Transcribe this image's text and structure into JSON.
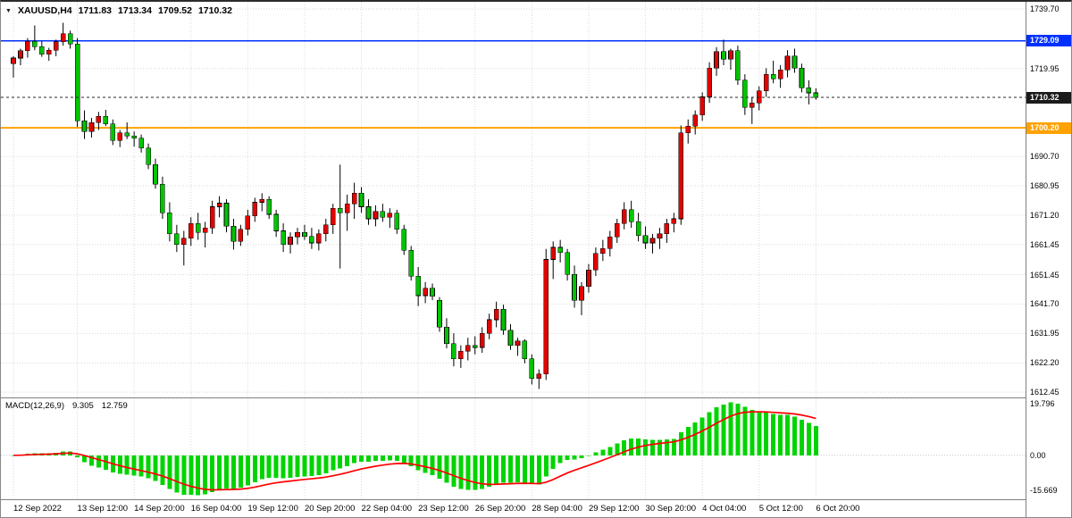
{
  "header": {
    "symbol": "XAUUSD,H4",
    "open": "1711.83",
    "high": "1713.34",
    "low": "1709.52",
    "close": "1710.32",
    "dropdown_icon": "triangle-down"
  },
  "colors": {
    "bull": "#e00400",
    "bear": "#00c400",
    "wick": "#000000",
    "grid": "#d8d8d8",
    "separator": "#808080",
    "hist": "#00d400",
    "signal": "#ff0000",
    "zero_line": "#c8c8c8",
    "text": "#000000",
    "badge_text": "#ffffff"
  },
  "chart_data": {
    "type": "candlestick",
    "symbol": "XAUUSD",
    "timeframe": "H4",
    "legend_position": "top-left",
    "grid": true,
    "main": {
      "ylim": [
        1610.69,
        1742.07
      ],
      "price_ticks": [
        "1739.70",
        "1719.95",
        "1690.70",
        "1680.95",
        "1671.20",
        "1661.45",
        "1651.45",
        "1641.70",
        "1631.95",
        "1622.20",
        "1612.45"
      ],
      "hlines": [
        {
          "price": 1729.09,
          "label": "1729.09",
          "color": "#0030ff",
          "style": "solid",
          "width": 1.5
        },
        {
          "price": 1700.2,
          "label": "1700.20",
          "color": "#ffa200",
          "style": "solid",
          "width": 2
        },
        {
          "price": 1710.32,
          "label": "1710.32",
          "color": "#2a2a2a",
          "style": "dotted",
          "width": 1,
          "badge": "#1b1b1b"
        }
      ],
      "candles": [
        [
          1721.5,
          1724.0,
          1716.9,
          1723.4
        ],
        [
          1723.4,
          1726.5,
          1721.0,
          1725.8
        ],
        [
          1725.8,
          1730.0,
          1723.5,
          1728.9
        ],
        [
          1728.9,
          1734.2,
          1726.0,
          1727.2
        ],
        [
          1727.2,
          1729.0,
          1723.8,
          1724.6
        ],
        [
          1724.6,
          1726.8,
          1722.5,
          1726.0
        ],
        [
          1726.0,
          1729.5,
          1724.0,
          1728.8
        ],
        [
          1728.8,
          1735.1,
          1727.5,
          1731.5
        ],
        [
          1731.5,
          1732.5,
          1726.5,
          1728.0
        ],
        [
          1728.0,
          1730.0,
          1700.5,
          1702.5
        ],
        [
          1702.5,
          1706.0,
          1696.5,
          1699.0
        ],
        [
          1699.0,
          1703.5,
          1697.0,
          1702.0
        ],
        [
          1702.0,
          1705.5,
          1699.5,
          1704.0
        ],
        [
          1704.0,
          1706.2,
          1700.8,
          1701.5
        ],
        [
          1701.5,
          1703.0,
          1694.5,
          1696.0
        ],
        [
          1696.0,
          1699.5,
          1693.8,
          1698.5
        ],
        [
          1698.5,
          1702.0,
          1696.5,
          1697.5
        ],
        [
          1697.5,
          1699.0,
          1694.0,
          1696.8
        ],
        [
          1696.8,
          1698.0,
          1692.0,
          1693.5
        ],
        [
          1693.5,
          1695.0,
          1686.5,
          1688.0
        ],
        [
          1688.0,
          1690.0,
          1680.0,
          1681.5
        ],
        [
          1681.5,
          1684.0,
          1670.0,
          1672.0
        ],
        [
          1672.0,
          1675.5,
          1662.5,
          1665.0
        ],
        [
          1665.0,
          1668.0,
          1659.0,
          1661.5
        ],
        [
          1661.5,
          1666.0,
          1654.5,
          1663.5
        ],
        [
          1663.5,
          1670.5,
          1661.0,
          1668.5
        ],
        [
          1668.5,
          1672.0,
          1663.0,
          1665.5
        ],
        [
          1665.5,
          1669.0,
          1660.5,
          1667.0
        ],
        [
          1667.0,
          1676.0,
          1665.0,
          1674.0
        ],
        [
          1674.0,
          1677.5,
          1670.5,
          1675.2
        ],
        [
          1675.2,
          1676.5,
          1665.5,
          1667.5
        ],
        [
          1667.5,
          1670.0,
          1659.8,
          1662.5
        ],
        [
          1662.5,
          1668.0,
          1661.0,
          1666.5
        ],
        [
          1666.5,
          1673.0,
          1664.5,
          1671.0
        ],
        [
          1671.0,
          1677.0,
          1669.0,
          1675.5
        ],
        [
          1675.5,
          1678.5,
          1672.5,
          1676.4
        ],
        [
          1676.4,
          1677.5,
          1670.0,
          1671.5
        ],
        [
          1671.5,
          1673.0,
          1664.0,
          1666.0
        ],
        [
          1666.0,
          1668.5,
          1659.0,
          1661.5
        ],
        [
          1661.5,
          1665.5,
          1658.5,
          1664.0
        ],
        [
          1664.0,
          1667.0,
          1661.5,
          1665.5
        ],
        [
          1665.5,
          1668.0,
          1663.0,
          1664.2
        ],
        [
          1664.2,
          1667.0,
          1660.0,
          1662.0
        ],
        [
          1662.0,
          1666.5,
          1659.5,
          1665.0
        ],
        [
          1665.0,
          1670.0,
          1662.5,
          1668.0
        ],
        [
          1668.0,
          1675.0,
          1665.0,
          1673.5
        ],
        [
          1673.5,
          1688.0,
          1653.5,
          1672.0
        ],
        [
          1672.0,
          1678.0,
          1666.0,
          1675.0
        ],
        [
          1675.0,
          1682.0,
          1670.0,
          1678.5
        ],
        [
          1678.5,
          1680.5,
          1672.0,
          1674.0
        ],
        [
          1674.0,
          1676.5,
          1668.0,
          1670.0
        ],
        [
          1670.0,
          1674.5,
          1667.5,
          1672.5
        ],
        [
          1672.5,
          1675.0,
          1669.0,
          1670.5
        ],
        [
          1670.5,
          1673.5,
          1667.0,
          1671.8
        ],
        [
          1671.8,
          1673.0,
          1665.0,
          1666.5
        ],
        [
          1666.5,
          1668.0,
          1658.0,
          1659.5
        ],
        [
          1659.5,
          1661.0,
          1649.5,
          1651.0
        ],
        [
          1651.0,
          1654.0,
          1641.0,
          1644.5
        ],
        [
          1644.5,
          1649.0,
          1642.0,
          1647.0
        ],
        [
          1647.0,
          1648.5,
          1643.0,
          1644.3
        ],
        [
          1643.0,
          1644.0,
          1632.5,
          1634.0
        ],
        [
          1634.0,
          1637.0,
          1627.0,
          1628.5
        ],
        [
          1628.5,
          1632.0,
          1621.0,
          1623.5
        ],
        [
          1623.5,
          1628.0,
          1620.5,
          1626.0
        ],
        [
          1626.0,
          1630.5,
          1623.0,
          1628.0
        ],
        [
          1628.0,
          1631.0,
          1625.0,
          1627.3
        ],
        [
          1627.3,
          1634.0,
          1625.5,
          1632.0
        ],
        [
          1632.0,
          1638.5,
          1630.0,
          1636.5
        ],
        [
          1636.5,
          1642.5,
          1634.0,
          1640.0
        ],
        [
          1640.0,
          1641.5,
          1631.5,
          1633.0
        ],
        [
          1633.0,
          1635.0,
          1626.5,
          1628.0
        ],
        [
          1628.0,
          1630.5,
          1624.5,
          1629.5
        ],
        [
          1629.5,
          1630.0,
          1622.0,
          1623.5
        ],
        [
          1623.5,
          1625.0,
          1615.0,
          1617.0
        ],
        [
          1617.0,
          1620.0,
          1613.5,
          1618.5
        ],
        [
          1618.5,
          1660.0,
          1616.5,
          1656.5
        ],
        [
          1656.5,
          1662.5,
          1650.0,
          1660.5
        ],
        [
          1660.5,
          1663.0,
          1655.5,
          1658.8
        ],
        [
          1658.8,
          1660.0,
          1649.5,
          1651.5
        ],
        [
          1651.5,
          1654.5,
          1640.5,
          1643.0
        ],
        [
          1643.0,
          1649.0,
          1638.0,
          1647.5
        ],
        [
          1647.5,
          1655.0,
          1645.5,
          1653.0
        ],
        [
          1653.0,
          1660.5,
          1651.0,
          1658.5
        ],
        [
          1658.5,
          1663.0,
          1656.0,
          1660.2
        ],
        [
          1660.2,
          1666.0,
          1657.5,
          1664.0
        ],
        [
          1664.0,
          1670.0,
          1662.0,
          1668.5
        ],
        [
          1668.5,
          1675.5,
          1666.5,
          1673.0
        ],
        [
          1673.0,
          1676.0,
          1667.0,
          1669.0
        ],
        [
          1669.0,
          1672.0,
          1662.5,
          1664.5
        ],
        [
          1664.5,
          1667.5,
          1660.0,
          1662.0
        ],
        [
          1662.0,
          1665.0,
          1658.5,
          1663.5
        ],
        [
          1663.5,
          1667.0,
          1660.0,
          1665.0
        ],
        [
          1665.0,
          1670.0,
          1662.0,
          1668.5
        ],
        [
          1668.5,
          1672.0,
          1665.5,
          1670.0
        ],
        [
          1670.0,
          1701.0,
          1668.0,
          1698.5
        ],
        [
          1698.5,
          1703.0,
          1695.0,
          1700.8
        ],
        [
          1700.8,
          1706.0,
          1698.0,
          1704.5
        ],
        [
          1704.5,
          1712.0,
          1702.5,
          1710.5
        ],
        [
          1710.5,
          1722.0,
          1708.5,
          1720.0
        ],
        [
          1720.0,
          1727.0,
          1717.5,
          1725.5
        ],
        [
          1725.5,
          1729.5,
          1721.0,
          1723.0
        ],
        [
          1723.0,
          1726.5,
          1719.5,
          1725.8
        ],
        [
          1725.8,
          1727.5,
          1714.5,
          1716.0
        ],
        [
          1716.0,
          1718.0,
          1704.5,
          1707.0
        ],
        [
          1707.0,
          1710.5,
          1701.5,
          1708.5
        ],
        [
          1708.5,
          1714.0,
          1706.0,
          1712.5
        ],
        [
          1712.5,
          1720.0,
          1710.5,
          1718.0
        ],
        [
          1718.0,
          1722.5,
          1715.0,
          1716.5
        ],
        [
          1716.5,
          1721.0,
          1713.5,
          1719.5
        ],
        [
          1719.5,
          1726.0,
          1717.0,
          1724.0
        ],
        [
          1724.0,
          1726.5,
          1718.5,
          1720.0
        ],
        [
          1720.0,
          1721.5,
          1712.0,
          1713.5
        ],
        [
          1713.5,
          1716.0,
          1708.0,
          1711.83
        ],
        [
          1711.83,
          1713.34,
          1709.52,
          1710.32
        ]
      ]
    },
    "macd": {
      "label": "MACD(12,26,9)",
      "params": [
        12,
        26,
        9
      ],
      "value_main": "9.305",
      "value_signal": "12.759",
      "axis_labels": [
        "19.796",
        "0.00",
        "-15.669"
      ]
    },
    "time_labels": [
      {
        "bar": 0,
        "text": "12 Sep 2022"
      },
      {
        "bar": 9,
        "text": "13 Sep 12:00"
      },
      {
        "bar": 17,
        "text": "14 Sep 20:00"
      },
      {
        "bar": 25,
        "text": "16 Sep 04:00"
      },
      {
        "bar": 33,
        "text": "19 Sep 12:00"
      },
      {
        "bar": 41,
        "text": "20 Sep 20:00"
      },
      {
        "bar": 49,
        "text": "22 Sep 04:00"
      },
      {
        "bar": 57,
        "text": "23 Sep 12:00"
      },
      {
        "bar": 65,
        "text": "26 Sep 20:00"
      },
      {
        "bar": 73,
        "text": "28 Sep 04:00"
      },
      {
        "bar": 81,
        "text": "29 Sep 12:00"
      },
      {
        "bar": 89,
        "text": "30 Sep 20:00"
      },
      {
        "bar": 97,
        "text": "4 Oct 04:00"
      },
      {
        "bar": 105,
        "text": "5 Oct 12:00"
      },
      {
        "bar": 113,
        "text": "6 Oct 20:00"
      }
    ]
  }
}
